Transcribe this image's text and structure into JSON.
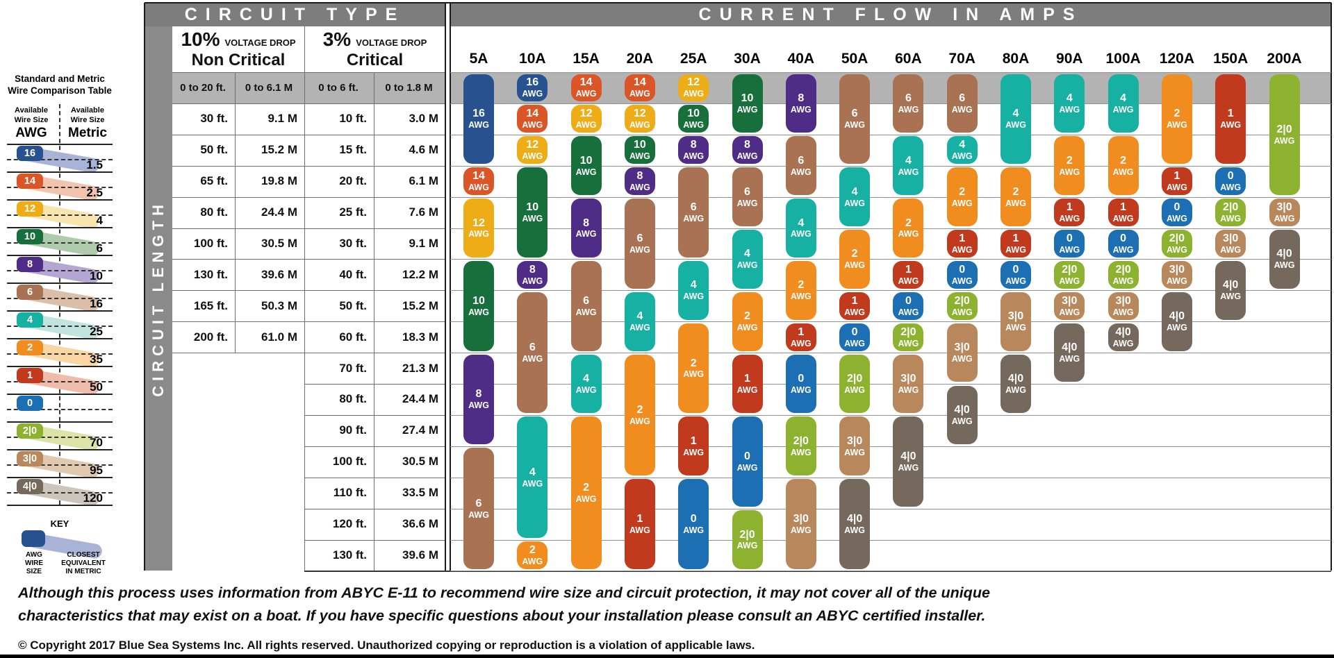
{
  "sidebar": {
    "title": "Standard and Metric\nWire Comparison Table",
    "left_header": {
      "line12": "Available\nWire Size",
      "line3": "AWG"
    },
    "right_header": {
      "line12": "Available\nWire Size",
      "line3": "Metric"
    },
    "rows": [
      {
        "awg": "16",
        "metric": "1.5"
      },
      {
        "awg": "14",
        "metric": "2.5"
      },
      {
        "awg": "12",
        "metric": "4"
      },
      {
        "awg": "10",
        "metric": "6"
      },
      {
        "awg": "8",
        "metric": "10"
      },
      {
        "awg": "6",
        "metric": "16"
      },
      {
        "awg": "4",
        "metric": "25"
      },
      {
        "awg": "2",
        "metric": "35"
      },
      {
        "awg": "1",
        "metric": "50"
      },
      {
        "awg": "0",
        "metric": ""
      },
      {
        "awg": "2|0",
        "metric": "70"
      },
      {
        "awg": "3|0",
        "metric": "95"
      },
      {
        "awg": "4|0",
        "metric": "120"
      }
    ],
    "key": {
      "title": "KEY",
      "pill_label": "AWG\nWIRE\nSIZE",
      "band_label": "CLOSEST\nEQUIVALENT\nIN METRIC"
    }
  },
  "chart_data": {
    "type": "table",
    "title": "CIRCUIT TYPE",
    "amps_title": "CURRENT FLOW IN AMPS",
    "circuit_length_label": "CIRCUIT LENGTH",
    "col_groups": {
      "ten": {
        "pct": "10%",
        "drop": "VOLTAGE DROP",
        "name": "Non Critical"
      },
      "three": {
        "pct": "3%",
        "drop": "VOLTAGE DROP",
        "name": "Critical"
      }
    },
    "row_labels": [
      {
        "ft10": "0 to 20 ft.",
        "m10": "0 to 6.1 M",
        "ft3": "0 to 6 ft.",
        "m3": "0 to 1.8 M"
      },
      {
        "ft10": "30 ft.",
        "m10": "9.1 M",
        "ft3": "10 ft.",
        "m3": "3.0 M"
      },
      {
        "ft10": "50 ft.",
        "m10": "15.2 M",
        "ft3": "15 ft.",
        "m3": "4.6 M"
      },
      {
        "ft10": "65 ft.",
        "m10": "19.8 M",
        "ft3": "20 ft.",
        "m3": "6.1 M"
      },
      {
        "ft10": "80 ft.",
        "m10": "24.4 M",
        "ft3": "25 ft.",
        "m3": "7.6 M"
      },
      {
        "ft10": "100 ft.",
        "m10": "30.5 M",
        "ft3": "30 ft.",
        "m3": "9.1 M"
      },
      {
        "ft10": "130 ft.",
        "m10": "39.6 M",
        "ft3": "40 ft.",
        "m3": "12.2 M"
      },
      {
        "ft10": "165 ft.",
        "m10": "50.3 M",
        "ft3": "50 ft.",
        "m3": "15.2 M"
      },
      {
        "ft10": "200 ft.",
        "m10": "61.0 M",
        "ft3": "60 ft.",
        "m3": "18.3 M"
      },
      {
        "ft10": "",
        "m10": "",
        "ft3": "70 ft.",
        "m3": "21.3 M"
      },
      {
        "ft10": "",
        "m10": "",
        "ft3": "80 ft.",
        "m3": "24.4 M"
      },
      {
        "ft10": "",
        "m10": "",
        "ft3": "90 ft.",
        "m3": "27.4 M"
      },
      {
        "ft10": "",
        "m10": "",
        "ft3": "100 ft.",
        "m3": "30.5 M"
      },
      {
        "ft10": "",
        "m10": "",
        "ft3": "110 ft.",
        "m3": "33.5 M"
      },
      {
        "ft10": "",
        "m10": "",
        "ft3": "120 ft.",
        "m3": "36.6 M"
      },
      {
        "ft10": "",
        "m10": "",
        "ft3": "130 ft.",
        "m3": "39.6 M"
      }
    ],
    "amp_columns": [
      {
        "amps": "5A",
        "pills": [
          {
            "wire": "16",
            "from": 1,
            "to": 3
          },
          {
            "wire": "14",
            "from": 4,
            "to": 4
          },
          {
            "wire": "12",
            "from": 5,
            "to": 6
          },
          {
            "wire": "10",
            "from": 7,
            "to": 9
          },
          {
            "wire": "8",
            "from": 10,
            "to": 12
          },
          {
            "wire": "6",
            "from": 13,
            "to": 16
          }
        ]
      },
      {
        "amps": "10A",
        "pills": [
          {
            "wire": "16",
            "from": 1,
            "to": 1
          },
          {
            "wire": "14",
            "from": 2,
            "to": 2
          },
          {
            "wire": "12",
            "from": 3,
            "to": 3
          },
          {
            "wire": "10",
            "from": 4,
            "to": 6
          },
          {
            "wire": "8",
            "from": 7,
            "to": 7
          },
          {
            "wire": "6",
            "from": 8,
            "to": 11
          },
          {
            "wire": "4",
            "from": 12,
            "to": 15
          },
          {
            "wire": "2",
            "from": 16,
            "to": 16
          }
        ]
      },
      {
        "amps": "15A",
        "pills": [
          {
            "wire": "14",
            "from": 1,
            "to": 1
          },
          {
            "wire": "12",
            "from": 2,
            "to": 2
          },
          {
            "wire": "10",
            "from": 3,
            "to": 4
          },
          {
            "wire": "8",
            "from": 5,
            "to": 6
          },
          {
            "wire": "6",
            "from": 7,
            "to": 9
          },
          {
            "wire": "4",
            "from": 10,
            "to": 11
          },
          {
            "wire": "2",
            "from": 12,
            "to": 16
          }
        ]
      },
      {
        "amps": "20A",
        "pills": [
          {
            "wire": "14",
            "from": 1,
            "to": 1
          },
          {
            "wire": "12",
            "from": 2,
            "to": 2
          },
          {
            "wire": "10",
            "from": 3,
            "to": 3
          },
          {
            "wire": "8",
            "from": 4,
            "to": 4
          },
          {
            "wire": "6",
            "from": 5,
            "to": 7
          },
          {
            "wire": "4",
            "from": 8,
            "to": 9
          },
          {
            "wire": "2",
            "from": 10,
            "to": 13
          },
          {
            "wire": "1",
            "from": 14,
            "to": 16
          }
        ]
      },
      {
        "amps": "25A",
        "pills": [
          {
            "wire": "12",
            "from": 1,
            "to": 1
          },
          {
            "wire": "10",
            "from": 2,
            "to": 2
          },
          {
            "wire": "8",
            "from": 3,
            "to": 3
          },
          {
            "wire": "6",
            "from": 4,
            "to": 6
          },
          {
            "wire": "4",
            "from": 7,
            "to": 8
          },
          {
            "wire": "2",
            "from": 9,
            "to": 11
          },
          {
            "wire": "1",
            "from": 12,
            "to": 13
          },
          {
            "wire": "0",
            "from": 14,
            "to": 16
          }
        ]
      },
      {
        "amps": "30A",
        "pills": [
          {
            "wire": "10",
            "from": 1,
            "to": 2
          },
          {
            "wire": "8",
            "from": 3,
            "to": 3
          },
          {
            "wire": "6",
            "from": 4,
            "to": 5
          },
          {
            "wire": "4",
            "from": 6,
            "to": 7
          },
          {
            "wire": "2",
            "from": 8,
            "to": 9
          },
          {
            "wire": "1",
            "from": 10,
            "to": 11
          },
          {
            "wire": "0",
            "from": 12,
            "to": 14
          },
          {
            "wire": "2|0",
            "from": 15,
            "to": 16
          }
        ]
      },
      {
        "amps": "40A",
        "pills": [
          {
            "wire": "8",
            "from": 1,
            "to": 2
          },
          {
            "wire": "6",
            "from": 3,
            "to": 4
          },
          {
            "wire": "4",
            "from": 5,
            "to": 6
          },
          {
            "wire": "2",
            "from": 7,
            "to": 8
          },
          {
            "wire": "1",
            "from": 9,
            "to": 9
          },
          {
            "wire": "0",
            "from": 10,
            "to": 11
          },
          {
            "wire": "2|0",
            "from": 12,
            "to": 13
          },
          {
            "wire": "3|0",
            "from": 14,
            "to": 16
          }
        ]
      },
      {
        "amps": "50A",
        "pills": [
          {
            "wire": "6",
            "from": 1,
            "to": 3
          },
          {
            "wire": "4",
            "from": 4,
            "to": 5
          },
          {
            "wire": "2",
            "from": 6,
            "to": 7
          },
          {
            "wire": "1",
            "from": 8,
            "to": 8
          },
          {
            "wire": "0",
            "from": 9,
            "to": 9
          },
          {
            "wire": "2|0",
            "from": 10,
            "to": 11
          },
          {
            "wire": "3|0",
            "from": 12,
            "to": 13
          },
          {
            "wire": "4|0",
            "from": 14,
            "to": 16
          }
        ]
      },
      {
        "amps": "60A",
        "pills": [
          {
            "wire": "6",
            "from": 1,
            "to": 2
          },
          {
            "wire": "4",
            "from": 3,
            "to": 4
          },
          {
            "wire": "2",
            "from": 5,
            "to": 6
          },
          {
            "wire": "1",
            "from": 7,
            "to": 7
          },
          {
            "wire": "0",
            "from": 8,
            "to": 8
          },
          {
            "wire": "2|0",
            "from": 9,
            "to": 9
          },
          {
            "wire": "3|0",
            "from": 10,
            "to": 11
          },
          {
            "wire": "4|0",
            "from": 12,
            "to": 14
          }
        ]
      },
      {
        "amps": "70A",
        "pills": [
          {
            "wire": "6",
            "from": 1,
            "to": 2
          },
          {
            "wire": "4",
            "from": 3,
            "to": 3
          },
          {
            "wire": "2",
            "from": 4,
            "to": 5
          },
          {
            "wire": "1",
            "from": 6,
            "to": 6
          },
          {
            "wire": "0",
            "from": 7,
            "to": 7
          },
          {
            "wire": "2|0",
            "from": 8,
            "to": 8
          },
          {
            "wire": "3|0",
            "from": 9,
            "to": 10
          },
          {
            "wire": "4|0",
            "from": 11,
            "to": 12
          }
        ]
      },
      {
        "amps": "80A",
        "pills": [
          {
            "wire": "4",
            "from": 1,
            "to": 3
          },
          {
            "wire": "2",
            "from": 4,
            "to": 5
          },
          {
            "wire": "1",
            "from": 6,
            "to": 6
          },
          {
            "wire": "0",
            "from": 7,
            "to": 7
          },
          {
            "wire": "3|0",
            "from": 8,
            "to": 9
          },
          {
            "wire": "4|0",
            "from": 10,
            "to": 11
          }
        ]
      },
      {
        "amps": "90A",
        "pills": [
          {
            "wire": "4",
            "from": 1,
            "to": 2
          },
          {
            "wire": "2",
            "from": 3,
            "to": 4
          },
          {
            "wire": "1",
            "from": 5,
            "to": 5
          },
          {
            "wire": "0",
            "from": 6,
            "to": 6
          },
          {
            "wire": "2|0",
            "from": 7,
            "to": 7
          },
          {
            "wire": "3|0",
            "from": 8,
            "to": 8
          },
          {
            "wire": "4|0",
            "from": 9,
            "to": 10
          }
        ]
      },
      {
        "amps": "100A",
        "pills": [
          {
            "wire": "4",
            "from": 1,
            "to": 2
          },
          {
            "wire": "2",
            "from": 3,
            "to": 4
          },
          {
            "wire": "1",
            "from": 5,
            "to": 5
          },
          {
            "wire": "0",
            "from": 6,
            "to": 6
          },
          {
            "wire": "2|0",
            "from": 7,
            "to": 7
          },
          {
            "wire": "3|0",
            "from": 8,
            "to": 8
          },
          {
            "wire": "4|0",
            "from": 9,
            "to": 9
          }
        ]
      },
      {
        "amps": "120A",
        "pills": [
          {
            "wire": "2",
            "from": 1,
            "to": 3
          },
          {
            "wire": "1",
            "from": 4,
            "to": 4
          },
          {
            "wire": "0",
            "from": 5,
            "to": 5
          },
          {
            "wire": "2|0",
            "from": 6,
            "to": 6
          },
          {
            "wire": "3|0",
            "from": 7,
            "to": 7
          },
          {
            "wire": "4|0",
            "from": 8,
            "to": 9
          }
        ]
      },
      {
        "amps": "150A",
        "pills": [
          {
            "wire": "1",
            "from": 1,
            "to": 3
          },
          {
            "wire": "0",
            "from": 4,
            "to": 4
          },
          {
            "wire": "2|0",
            "from": 5,
            "to": 5
          },
          {
            "wire": "3|0",
            "from": 6,
            "to": 6
          },
          {
            "wire": "4|0",
            "from": 7,
            "to": 8
          }
        ]
      },
      {
        "amps": "200A",
        "pills": [
          {
            "wire": "2|0",
            "from": 1,
            "to": 4
          },
          {
            "wire": "3|0",
            "from": 5,
            "to": 5
          },
          {
            "wire": "4|0",
            "from": 6,
            "to": 7
          }
        ]
      }
    ]
  },
  "colors": {
    "header_gray": "#7d7d7d",
    "length_bar_gray": "#8a8a8a",
    "first_row_band": "#b3b3b3",
    "wire": {
      "16": "#27528f",
      "14": "#dc5527",
      "12": "#eeac17",
      "10": "#176f3c",
      "8": "#4f2d87",
      "6": "#a97353",
      "4": "#16b1a2",
      "2": "#f18c1f",
      "1": "#c23a1e",
      "0": "#1b6fb2",
      "2|0": "#8db230",
      "3|0": "#b8885c",
      "4|0": "#75685c"
    },
    "wire_light": {
      "16": "#a9b3d8",
      "14": "#f3c4ad",
      "12": "#f8e4ae",
      "10": "#aecbab",
      "8": "#b4a7d4",
      "6": "#dcbfa9",
      "4": "#c2e4df",
      "2": "#f9d6a3",
      "1": "#efbcab",
      "0": "#adc6e2",
      "2|0": "#dbe3a7",
      "3|0": "#e0c9af",
      "4|0": "#cdc5bb"
    }
  },
  "footer": {
    "disclaimer_line1": "Although this process uses information from ABYC E-11 to recommend wire size and circuit protection, it may not cover all of the unique",
    "disclaimer_line2": "characteristics that may exist on a boat. If you have specific questions about your installation please consult an ABYC certified installer.",
    "copyright": "© Copyright 2017 Blue Sea Systems Inc. All rights reserved. Unauthorized copying or reproduction is a violation of applicable laws."
  }
}
